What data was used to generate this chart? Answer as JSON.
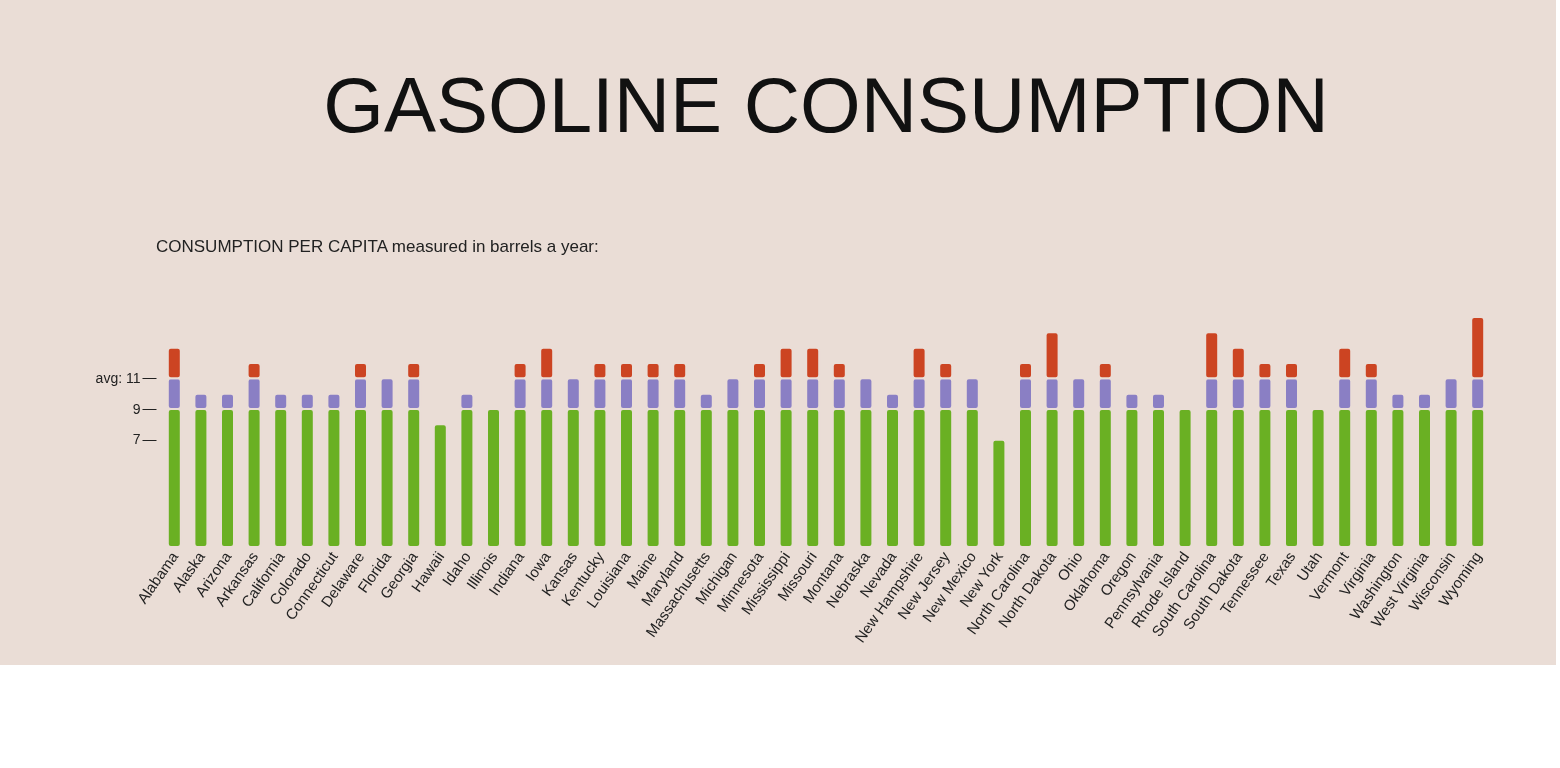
{
  "chart_data": {
    "type": "bar",
    "stacked": true,
    "title": "GASOLINE CONSUMPTION",
    "subtitle": "CONSUMPTION PER CAPITA measured in barrels a year:",
    "categories": [
      "Alabama",
      "Alaska",
      "Arizona",
      "Arkansas",
      "California",
      "Colorado",
      "Connecticut",
      "Delaware",
      "Florida",
      "Georgia",
      "Hawaii",
      "Idaho",
      "Illinois",
      "Indiana",
      "Iowa",
      "Kansas",
      "Kentucky",
      "Louisiana",
      "Maine",
      "Maryland",
      "Massachusetts",
      "Michigan",
      "Minnesota",
      "Mississippi",
      "Missouri",
      "Montana",
      "Nebraska",
      "Nevada",
      "New Hampshire",
      "New Jersey",
      "New Mexico",
      "New York",
      "North Carolina",
      "North Dakota",
      "Ohio",
      "Oklahoma",
      "Oregon",
      "Pennsylvania",
      "Rhode Island",
      "South Carolina",
      "South Dakota",
      "Tennessee",
      "Texas",
      "Utah",
      "Vermont",
      "Virginia",
      "Washington",
      "West Virginia",
      "Wisconsin",
      "Wyoming"
    ],
    "series": [
      {
        "color": "#6ab023",
        "values": [
          9,
          9,
          9,
          9,
          9,
          9,
          9,
          9,
          9,
          9,
          8,
          9,
          9,
          9,
          9,
          9,
          9,
          9,
          9,
          9,
          9,
          9,
          9,
          9,
          9,
          9,
          9,
          9,
          9,
          9,
          9,
          7,
          9,
          9,
          9,
          9,
          9,
          9,
          9,
          9,
          9,
          9,
          9,
          9,
          9,
          9,
          9,
          9,
          9,
          9
        ]
      },
      {
        "color": "#8a7fc4",
        "values": [
          2,
          1,
          1,
          2,
          1,
          1,
          1,
          2,
          2,
          2,
          0,
          1,
          0,
          2,
          2,
          2,
          2,
          2,
          2,
          2,
          1,
          2,
          2,
          2,
          2,
          2,
          2,
          1,
          2,
          2,
          2,
          0,
          2,
          2,
          2,
          2,
          1,
          1,
          0,
          2,
          2,
          2,
          2,
          0,
          2,
          2,
          1,
          1,
          2,
          2
        ]
      },
      {
        "color": "#cc4422",
        "values": [
          2,
          0,
          0,
          1,
          0,
          0,
          0,
          1,
          0,
          1,
          0,
          0,
          0,
          1,
          2,
          0,
          1,
          1,
          1,
          1,
          0,
          0,
          1,
          2,
          2,
          1,
          0,
          0,
          2,
          1,
          0,
          0,
          1,
          3,
          0,
          1,
          0,
          0,
          0,
          3,
          2,
          1,
          1,
          0,
          2,
          1,
          0,
          0,
          0,
          4
        ]
      }
    ],
    "ylim": [
      0,
      15
    ],
    "yticks": [
      7,
      9,
      {
        "value": 11,
        "label": "avg: 11"
      }
    ],
    "grid": false
  }
}
